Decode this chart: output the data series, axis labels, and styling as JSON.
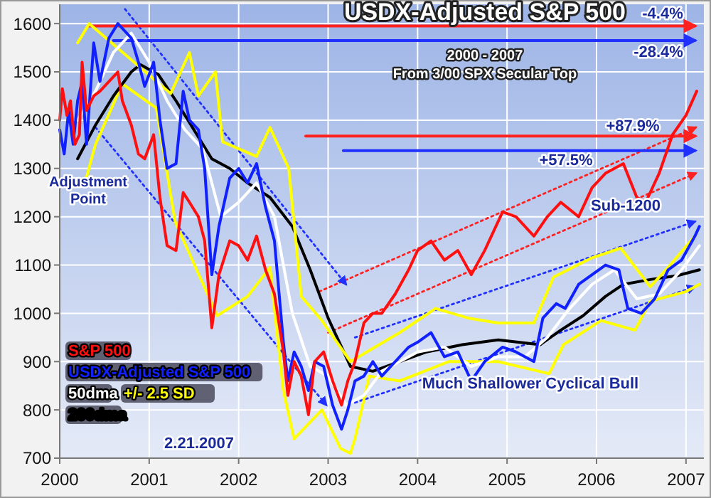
{
  "chart_data": {
    "type": "line",
    "title": "USDX-Adjusted S&P 500",
    "subtitle": "2000 - 2007\nFrom 3/00 SPX Secular Top",
    "xlim": [
      2000,
      2007.2
    ],
    "ylim": [
      700,
      1640
    ],
    "xticks": [
      2000,
      2001,
      2002,
      2003,
      2004,
      2005,
      2006,
      2007
    ],
    "yticks": [
      700,
      800,
      900,
      1000,
      1100,
      1200,
      1300,
      1400,
      1500,
      1600
    ],
    "grid": true,
    "legend": "bottom left",
    "annotations": [
      "Adjustment\nPoint",
      "-4.4%",
      "-28.4%",
      "+87.9%",
      "+57.5%",
      "Sub-1200",
      "Much Shallower Cyclical Bull",
      "2.21.2007"
    ],
    "series": [
      {
        "name": "S&P 500",
        "color": "#ff1010",
        "x": [
          2000,
          2000.03,
          2000.08,
          2000.12,
          2000.17,
          2000.22,
          2000.25,
          2000.3,
          2000.38,
          2000.45,
          2000.55,
          2000.65,
          2000.7,
          2000.8,
          2000.88,
          2000.95,
          2001.05,
          2001.12,
          2001.2,
          2001.3,
          2001.38,
          2001.45,
          2001.55,
          2001.62,
          2001.7,
          2001.78,
          2001.9,
          2002,
          2002.1,
          2002.2,
          2002.3,
          2002.4,
          2002.5,
          2002.55,
          2002.62,
          2002.7,
          2002.78,
          2002.85,
          2002.95,
          2003.05,
          2003.15,
          2003.22,
          2003.3,
          2003.4,
          2003.5,
          2003.6,
          2003.75,
          2003.9,
          2004,
          2004.15,
          2004.3,
          2004.45,
          2004.6,
          2004.75,
          2004.95,
          2005.1,
          2005.3,
          2005.45,
          2005.6,
          2005.8,
          2005.95,
          2006.1,
          2006.3,
          2006.45,
          2006.55,
          2006.7,
          2006.85,
          2007,
          2007.12
        ],
        "values": [
          1400,
          1465,
          1410,
          1440,
          1350,
          1370,
          1520,
          1420,
          1450,
          1460,
          1480,
          1500,
          1440,
          1390,
          1330,
          1320,
          1370,
          1240,
          1140,
          1130,
          1250,
          1230,
          1200,
          1150,
          970,
          1080,
          1150,
          1140,
          1110,
          1160,
          1090,
          1040,
          920,
          830,
          900,
          870,
          790,
          900,
          920,
          860,
          810,
          860,
          900,
          980,
          1000,
          1000,
          1040,
          1090,
          1130,
          1150,
          1110,
          1130,
          1080,
          1130,
          1210,
          1200,
          1160,
          1200,
          1230,
          1200,
          1260,
          1290,
          1310,
          1240,
          1230,
          1290,
          1370,
          1410,
          1460
        ]
      },
      {
        "name": "USDX-Adjusted S&P 500",
        "color": "#1020ff",
        "x": [
          2000,
          2000.05,
          2000.1,
          2000.15,
          2000.2,
          2000.25,
          2000.3,
          2000.38,
          2000.45,
          2000.55,
          2000.65,
          2000.8,
          2000.88,
          2000.95,
          2001.05,
          2001.12,
          2001.2,
          2001.3,
          2001.38,
          2001.45,
          2001.55,
          2001.62,
          2001.7,
          2001.78,
          2001.9,
          2002,
          2002.1,
          2002.2,
          2002.3,
          2002.4,
          2002.5,
          2002.55,
          2002.62,
          2002.7,
          2002.78,
          2002.85,
          2002.95,
          2003.05,
          2003.15,
          2003.22,
          2003.3,
          2003.4,
          2003.5,
          2003.6,
          2003.75,
          2003.9,
          2004,
          2004.15,
          2004.3,
          2004.45,
          2004.6,
          2004.75,
          2004.95,
          2005.1,
          2005.3,
          2005.4,
          2005.55,
          2005.65,
          2005.8,
          2005.95,
          2006.1,
          2006.25,
          2006.35,
          2006.5,
          2006.65,
          2006.8,
          2006.95,
          2007.1,
          2007.15
        ],
        "values": [
          1380,
          1330,
          1420,
          1350,
          1440,
          1480,
          1350,
          1560,
          1480,
          1570,
          1600,
          1570,
          1520,
          1470,
          1520,
          1400,
          1300,
          1310,
          1460,
          1400,
          1380,
          1300,
          1080,
          1180,
          1280,
          1300,
          1270,
          1310,
          1220,
          1150,
          940,
          860,
          920,
          890,
          840,
          900,
          890,
          810,
          760,
          800,
          860,
          870,
          900,
          870,
          900,
          930,
          940,
          960,
          910,
          920,
          860,
          900,
          930,
          920,
          900,
          990,
          1020,
          1010,
          1060,
          1080,
          1100,
          1090,
          1010,
          1000,
          1030,
          1090,
          1110,
          1160,
          1180
        ]
      },
      {
        "name": "50dma",
        "color": "#ffffff",
        "x": [
          2000.2,
          2000.4,
          2000.6,
          2000.8,
          2001,
          2001.2,
          2001.4,
          2001.6,
          2001.8,
          2002,
          2002.2,
          2002.4,
          2002.6,
          2002.8,
          2003,
          2003.2,
          2003.4,
          2003.6,
          2003.8,
          2004,
          2004.3,
          2004.6,
          2004.9,
          2005.2,
          2005.45,
          2005.7,
          2005.95,
          2006.2,
          2006.45,
          2006.7,
          2006.95,
          2007.15
        ],
        "values": [
          1400,
          1460,
          1540,
          1580,
          1520,
          1440,
          1380,
          1340,
          1200,
          1230,
          1270,
          1200,
          1000,
          890,
          870,
          810,
          830,
          880,
          900,
          920,
          930,
          890,
          910,
          910,
          950,
          1010,
          1060,
          1090,
          1030,
          1040,
          1090,
          1140
        ]
      },
      {
        "name": "+/- 2.5 SD",
        "color": "#ffff00",
        "x": [
          2000.2,
          2000.33,
          2001.24,
          2001.45,
          2001.55,
          2001.74,
          2001.82,
          2002.2,
          2002.35,
          2002.56,
          2002.7,
          2002.93,
          2003.25,
          2003.8,
          2004.2,
          2004.57,
          2004.9,
          2005.3,
          2005.52,
          2005.95,
          2006.27,
          2006.6,
          2006.8,
          2007.1
        ],
        "values": [
          1560,
          1600,
          1455,
          1540,
          1450,
          1500,
          1355,
          1325,
          1385,
          1300,
          1035,
          985,
          900,
          960,
          1010,
          990,
          980,
          980,
          1075,
          1115,
          1135,
          1055,
          1095,
          1160
        ]
      },
      {
        "name": "200dma",
        "color": "#000000",
        "x": [
          2000.2,
          2000.4,
          2000.6,
          2000.8,
          2000.9,
          2001.1,
          2001.3,
          2001.5,
          2001.7,
          2001.9,
          2002.1,
          2002.35,
          2002.6,
          2002.8,
          2003,
          2003.25,
          2003.5,
          2003.8,
          2004.1,
          2004.5,
          2004.9,
          2005.37,
          2005.6,
          2005.85,
          2006.1,
          2006.3,
          2006.6,
          2006.9,
          2007.15
        ],
        "values": [
          1320,
          1390,
          1450,
          1500,
          1515,
          1495,
          1440,
          1380,
          1320,
          1300,
          1270,
          1240,
          1180,
          1090,
          990,
          890,
          880,
          900,
          920,
          935,
          945,
          935,
          965,
          995,
          1035,
          1060,
          1070,
          1078,
          1090
        ]
      },
      {
        "color": "#ffff00",
        "x": [
          2000.29,
          2000.4,
          2000.7,
          2001.08,
          2001.29,
          2001.76,
          2002.1,
          2002.35,
          2002.5,
          2002.62,
          2002.93,
          2003.14,
          2003.25,
          2003.3,
          2003.46,
          2003.8,
          2004.35,
          2004.9,
          2005.47,
          2005.63,
          2006.05,
          2006.43,
          2006.6,
          2007,
          2007.15
        ],
        "values": [
          1275,
          1350,
          1475,
          1425,
          1190,
          995,
          1035,
          1095,
          840,
          740,
          800,
          720,
          710,
          740,
          870,
          860,
          900,
          900,
          875,
          935,
          985,
          965,
          1025,
          1045,
          1060
        ]
      },
      {
        "color": "#ff2020",
        "line_style": "solid",
        "x": [
          2000.32,
          2007.1
        ],
        "values": [
          1595,
          1595
        ]
      },
      {
        "color": "#2030ff",
        "line_style": "solid",
        "x": [
          2000.6,
          2007.1
        ],
        "values": [
          1565,
          1565
        ]
      },
      {
        "color": "#ff2020",
        "line_style": "solid",
        "x": [
          2002.75,
          2007.1
        ],
        "values": [
          1367,
          1367
        ]
      },
      {
        "color": "#2030ff",
        "line_style": "solid",
        "x": [
          2003.17,
          2007.1
        ],
        "values": [
          1337,
          1337
        ]
      },
      {
        "color": "#2030ff",
        "line_style": "dotted",
        "x": [
          2000.73,
          2003.2
        ],
        "values": [
          1630,
          1060
        ]
      },
      {
        "color": "#2030ff",
        "line_style": "dotted",
        "x": [
          2000.4,
          2002.98
        ],
        "values": [
          1385,
          810
        ]
      },
      {
        "color": "#ff2020",
        "line_style": "dotted",
        "x": [
          2002.9,
          2007.11
        ],
        "values": [
          1045,
          1385
        ]
      },
      {
        "color": "#ff2020",
        "line_style": "dotted",
        "x": [
          2003.0,
          2007.11
        ],
        "values": [
          960,
          1290
        ]
      },
      {
        "color": "#2030ff",
        "line_style": "dotted",
        "x": [
          2003.3,
          2007.1
        ],
        "values": [
          950,
          1190
        ]
      },
      {
        "color": "#2030ff",
        "line_style": "dotted",
        "x": [
          2003.3,
          2007.1
        ],
        "values": [
          815,
          1055
        ]
      }
    ]
  }
}
